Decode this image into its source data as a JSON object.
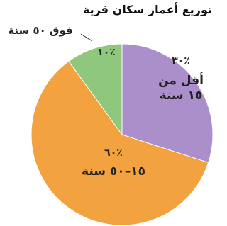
{
  "chart_data": {
    "type": "pie",
    "title": "توزيع أعمار سكان قرية",
    "categories": [
      "أقل من ١٥ سنة",
      "١٥–٥٠ سنة",
      "فوق ٥٠ سنة"
    ],
    "values": [
      30,
      60,
      10
    ],
    "value_labels": [
      "٪٣٠",
      "٪٦٠",
      "٪١٠"
    ],
    "colors": [
      "#ab8fcb",
      "#f2a23e",
      "#8fc77c"
    ]
  }
}
